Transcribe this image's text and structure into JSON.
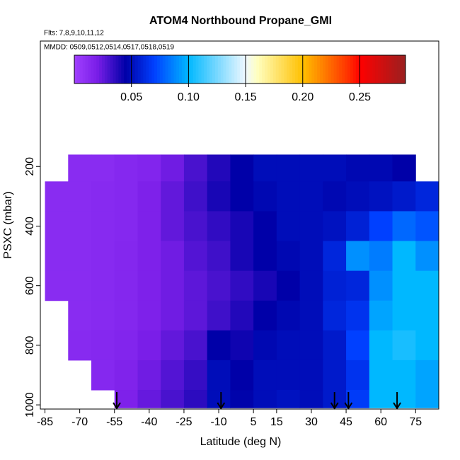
{
  "chart_data": {
    "type": "heatmap",
    "title": "ATOM4 Northbound Propane_GMI",
    "subtitle": "Flts: 7,8,9,10,11,12",
    "subtitle2": "MMDD: 0509,0512,0514,0517,0518,0519",
    "x_label": "Latitude (deg N)",
    "y_label": "PSXC (mbar)",
    "xlim": [
      -87,
      85
    ],
    "ylim": [
      1014,
      -221
    ],
    "xticks": [
      -85,
      -70,
      -55,
      -40,
      -25,
      -10,
      5,
      15,
      30,
      45,
      60,
      75
    ],
    "yticks": [
      200,
      400,
      600,
      800,
      1000
    ],
    "x_edges": [
      -85,
      -75,
      -65,
      -55,
      -45,
      -35,
      -25,
      -15,
      -5,
      5,
      15,
      25,
      35,
      45,
      55,
      65,
      75,
      85
    ],
    "y_edges": [
      160,
      250,
      350,
      450,
      550,
      650,
      750,
      850,
      950,
      1010
    ],
    "z": [
      [
        null,
        0.012,
        0.012,
        0.014,
        0.016,
        0.022,
        0.03,
        0.038,
        0.045,
        0.05,
        0.05,
        0.05,
        0.05,
        0.048,
        0.048,
        0.045,
        null
      ],
      [
        0.012,
        0.012,
        0.013,
        0.014,
        0.018,
        0.025,
        0.032,
        0.04,
        0.045,
        0.048,
        0.05,
        0.05,
        0.048,
        0.05,
        0.052,
        0.055,
        0.06
      ],
      [
        0.012,
        0.012,
        0.013,
        0.014,
        0.018,
        0.025,
        0.03,
        0.035,
        0.04,
        0.045,
        0.05,
        0.05,
        0.052,
        0.058,
        0.07,
        0.08,
        0.075
      ],
      [
        0.012,
        0.012,
        0.013,
        0.015,
        0.018,
        0.022,
        0.028,
        0.032,
        0.04,
        0.045,
        0.048,
        0.05,
        0.06,
        0.09,
        0.085,
        0.1,
        0.09
      ],
      [
        0.012,
        0.012,
        0.013,
        0.015,
        0.018,
        0.022,
        0.026,
        0.03,
        0.035,
        0.04,
        0.045,
        0.05,
        0.058,
        0.06,
        0.09,
        0.1,
        0.1
      ],
      [
        null,
        0.012,
        0.013,
        0.015,
        0.018,
        0.022,
        0.026,
        0.032,
        0.038,
        0.045,
        0.048,
        0.05,
        0.06,
        0.065,
        0.095,
        0.1,
        0.1
      ],
      [
        null,
        0.013,
        0.014,
        0.016,
        0.02,
        0.025,
        0.03,
        0.045,
        0.042,
        0.048,
        0.05,
        0.05,
        0.055,
        0.07,
        0.1,
        0.105,
        0.1
      ],
      [
        null,
        null,
        0.014,
        0.017,
        0.022,
        0.028,
        0.034,
        0.05,
        0.045,
        0.05,
        0.05,
        0.05,
        0.055,
        0.065,
        0.1,
        0.1,
        0.095
      ],
      [
        null,
        null,
        null,
        0.018,
        0.024,
        0.03,
        0.036,
        0.05,
        0.046,
        0.05,
        0.052,
        0.05,
        0.055,
        0.068,
        0.1,
        0.1,
        0.095
      ]
    ],
    "zlim": [
      0,
      0.29
    ],
    "colorscale": [
      [
        0,
        "#a040ff"
      ],
      [
        0.02,
        "#7a1ee8"
      ],
      [
        0.045,
        "#0000a8"
      ],
      [
        0.07,
        "#0040ff"
      ],
      [
        0.1,
        "#00b8ff"
      ],
      [
        0.15,
        "#f0f8ff"
      ],
      [
        0.16,
        "#ffffc0"
      ],
      [
        0.2,
        "#ffc000"
      ],
      [
        0.24,
        "#ff3000"
      ],
      [
        0.25,
        "#ff0000"
      ],
      [
        0.29,
        "#9a2020"
      ]
    ],
    "colorbar_ticks": [
      0.05,
      {
        "value": 0.1,
        "label": "0.10"
      },
      0.15,
      {
        "value": 0.2,
        "label": "0.20"
      },
      0.25
    ],
    "arrows_x": [
      -54,
      -9,
      40,
      46,
      67
    ]
  }
}
